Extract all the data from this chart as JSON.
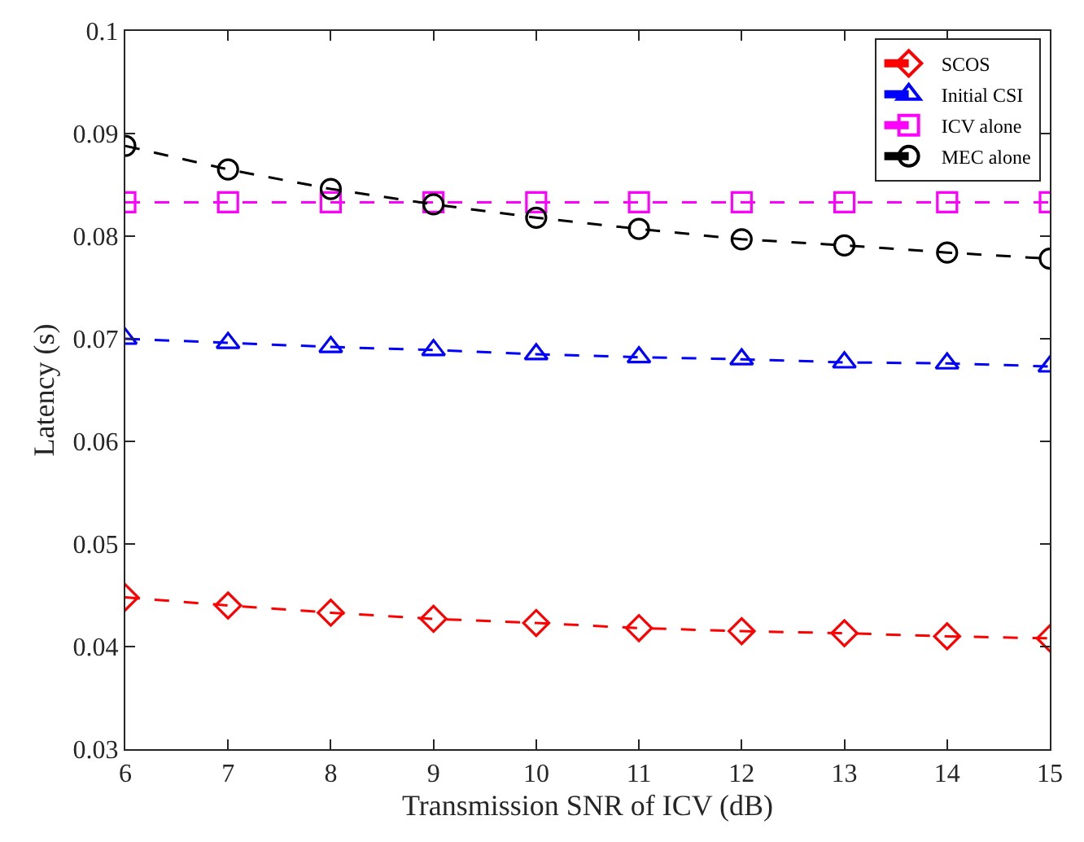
{
  "chart_data": {
    "type": "line",
    "xlabel": "Transmission SNR of ICV (dB)",
    "ylabel": "Latency (s)",
    "x": [
      6,
      7,
      8,
      9,
      10,
      11,
      12,
      13,
      14,
      15
    ],
    "series": [
      {
        "name": "SCOS",
        "color": "#ff0000",
        "marker": "diamond",
        "values": [
          0.0448,
          0.044,
          0.0433,
          0.0427,
          0.0423,
          0.0418,
          0.0415,
          0.0413,
          0.041,
          0.0408
        ]
      },
      {
        "name": "Initial CSI",
        "color": "#0000ff",
        "marker": "triangle",
        "values": [
          0.07,
          0.0696,
          0.0692,
          0.0689,
          0.0685,
          0.0682,
          0.068,
          0.0677,
          0.0676,
          0.0673
        ]
      },
      {
        "name": "ICV alone",
        "color": "#ff00ff",
        "marker": "square",
        "values": [
          0.0833,
          0.0833,
          0.0833,
          0.0833,
          0.0833,
          0.0833,
          0.0833,
          0.0833,
          0.0833,
          0.0833
        ]
      },
      {
        "name": "MEC alone",
        "color": "#000000",
        "marker": "circle",
        "values": [
          0.0888,
          0.0865,
          0.0846,
          0.0831,
          0.0818,
          0.0807,
          0.0797,
          0.0791,
          0.0784,
          0.0778
        ]
      }
    ],
    "line_style": "dashed",
    "xlim": [
      6,
      15
    ],
    "xticks": [
      6,
      7,
      8,
      9,
      10,
      11,
      12,
      13,
      14,
      15
    ],
    "ylim": [
      0.03,
      0.1
    ],
    "yticks": [
      0.03,
      0.04,
      0.05,
      0.06,
      0.07,
      0.08,
      0.09,
      0.1
    ],
    "legend": "top right"
  }
}
